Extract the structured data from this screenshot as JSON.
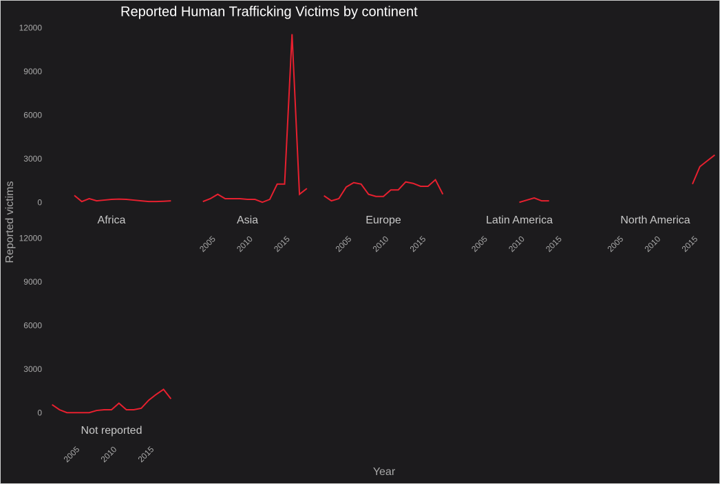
{
  "chart_data": {
    "type": "line",
    "title": "Reported Human Trafficking Victims by continent",
    "x_label": "Year",
    "y_label": "Reported victims",
    "color": "#e8202f",
    "x": [
      2002,
      2003,
      2004,
      2005,
      2006,
      2007,
      2008,
      2009,
      2010,
      2011,
      2012,
      2013,
      2014,
      2015,
      2016,
      2017,
      2018
    ],
    "xlim": [
      2001.2,
      2018.8
    ],
    "xticks": [
      2005,
      2010,
      2015
    ],
    "ylim": [
      -600,
      12200
    ],
    "yticks": [
      0,
      3000,
      6000,
      9000,
      12000
    ],
    "facets": [
      {
        "name": "Africa",
        "values": [
          null,
          null,
          null,
          520,
          100,
          300,
          150,
          200,
          250,
          270,
          250,
          200,
          150,
          100,
          100,
          120,
          150
        ]
      },
      {
        "name": "Asia",
        "values": [
          null,
          null,
          100,
          300,
          600,
          300,
          300,
          300,
          250,
          250,
          50,
          250,
          1300,
          1300,
          11600,
          600,
          1000
        ]
      },
      {
        "name": "Europe",
        "values": [
          500,
          150,
          300,
          1100,
          1400,
          1300,
          600,
          450,
          450,
          900,
          900,
          1450,
          1350,
          1150,
          1150,
          1600,
          600
        ]
      },
      {
        "name": "Latin America",
        "values": [
          null,
          null,
          null,
          null,
          null,
          null,
          null,
          null,
          50,
          200,
          350,
          150,
          150,
          null,
          null,
          null,
          null
        ]
      },
      {
        "name": "North America",
        "values": [
          null,
          null,
          null,
          null,
          null,
          null,
          null,
          null,
          null,
          null,
          null,
          null,
          null,
          1300,
          2500,
          2900,
          3300
        ]
      },
      {
        "name": "Not reported",
        "values": [
          600,
          250,
          50,
          50,
          50,
          50,
          200,
          250,
          250,
          700,
          250,
          250,
          350,
          900,
          1300,
          1650,
          1000
        ]
      }
    ]
  }
}
